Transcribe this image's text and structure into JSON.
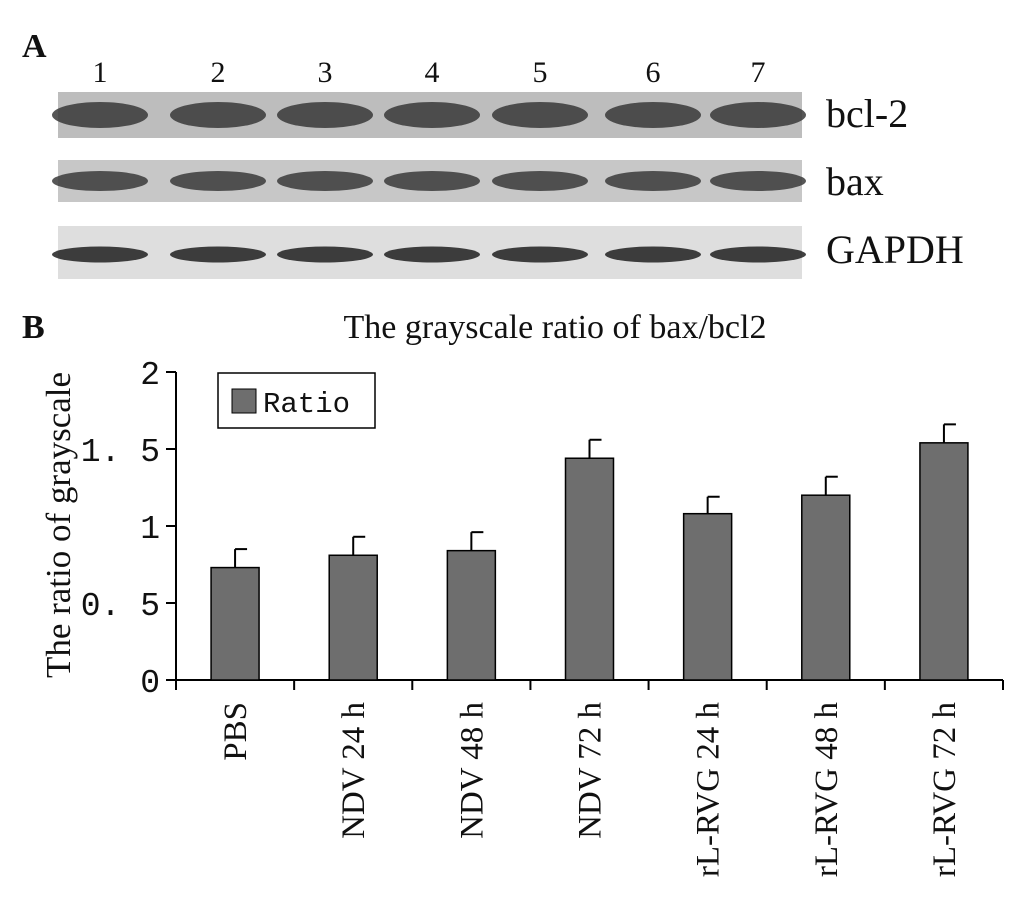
{
  "panel_a": {
    "label": "A",
    "lane_numbers": [
      "1",
      "2",
      "3",
      "4",
      "5",
      "6",
      "7"
    ],
    "band_labels": [
      "bcl-2",
      "bax",
      "GAPDH"
    ]
  },
  "panel_b": {
    "label": "B"
  },
  "chart_data": {
    "type": "bar",
    "title": "The grayscale ratio of  bax/bcl2",
    "ylabel": "The ratio of  grayscale",
    "xlabel": "",
    "ylim": [
      0,
      2
    ],
    "yticks": [
      0,
      0.5,
      1,
      1.5,
      2
    ],
    "ytick_labels": [
      "0",
      "0. 5",
      "1",
      "1. 5",
      "2"
    ],
    "categories": [
      "PBS",
      "NDV 24 h",
      "NDV 48 h",
      "NDV 72 h",
      "rL-RVG 24 h",
      "rL-RVG 48 h",
      "rL-RVG 72 h"
    ],
    "series": [
      {
        "name": "Ratio",
        "values": [
          0.73,
          0.81,
          0.84,
          1.44,
          1.08,
          1.2,
          1.54
        ],
        "errors": [
          0.12,
          0.12,
          0.12,
          0.12,
          0.11,
          0.12,
          0.12
        ],
        "color": "#6e6e6e"
      }
    ],
    "grid": false,
    "legend_position": "top-left"
  }
}
